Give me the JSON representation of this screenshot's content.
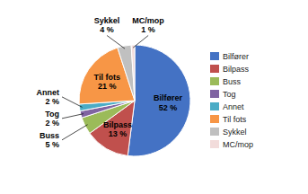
{
  "chart_data": {
    "type": "pie",
    "categories": [
      "Bilfører",
      "Bilpass",
      "Buss",
      "Tog",
      "Annet",
      "Til fots",
      "Sykkel",
      "MC/mop"
    ],
    "values": [
      52,
      13,
      5,
      2,
      2,
      21,
      4,
      1
    ],
    "value_labels": [
      "52 %",
      "13 %",
      "5 %",
      "2 %",
      "2 %",
      "21 %",
      "4 %",
      "1 %"
    ],
    "colors": [
      "#4472C4",
      "#C0504D",
      "#9BBB59",
      "#8064A2",
      "#4BACC6",
      "#F79646",
      "#C0C0C0",
      "#F2DCDB"
    ],
    "data_labels": true,
    "legend": "right"
  }
}
